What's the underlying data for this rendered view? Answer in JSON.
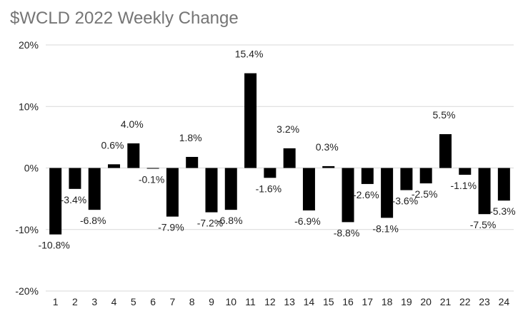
{
  "chart_data": {
    "type": "bar",
    "title": "$WCLD 2022 Weekly Change",
    "xlabel": "",
    "ylabel": "",
    "categories": [
      "1",
      "2",
      "3",
      "4",
      "5",
      "6",
      "7",
      "8",
      "9",
      "10",
      "11",
      "12",
      "13",
      "14",
      "15",
      "16",
      "17",
      "18",
      "19",
      "20",
      "21",
      "22",
      "23",
      "24"
    ],
    "values": [
      -10.8,
      -3.4,
      -6.8,
      0.6,
      4.0,
      -0.1,
      -7.9,
      1.8,
      -7.2,
      -6.8,
      15.4,
      -1.6,
      3.2,
      -6.9,
      0.3,
      -8.8,
      -2.6,
      -8.1,
      -3.6,
      -2.5,
      5.5,
      -1.1,
      -7.5,
      -5.3
    ],
    "data_labels": [
      "-10.8%",
      "-3.4%",
      "-6.8%",
      "0.6%",
      "4.0%",
      "-0.1%",
      "-7.9%",
      "1.8%",
      "-7.2%",
      "-6.8%",
      "15.4%",
      "-1.6%",
      "3.2%",
      "-6.9%",
      "0.3%",
      "-8.8%",
      "-2.6%",
      "-8.1%",
      "-3.6%",
      "-2.5%",
      "5.5%",
      "-1.1%",
      "-7.5%",
      "-5.3%"
    ],
    "ylim": [
      -20,
      20
    ],
    "yticks": [
      20,
      10,
      0,
      -10,
      -20
    ],
    "ytick_labels": [
      "20%",
      "10%",
      "0%",
      "-10%",
      "-20%"
    ],
    "grid": true,
    "legend": "none",
    "bar_color": "#000000",
    "grid_color": "#d9d9d9"
  }
}
